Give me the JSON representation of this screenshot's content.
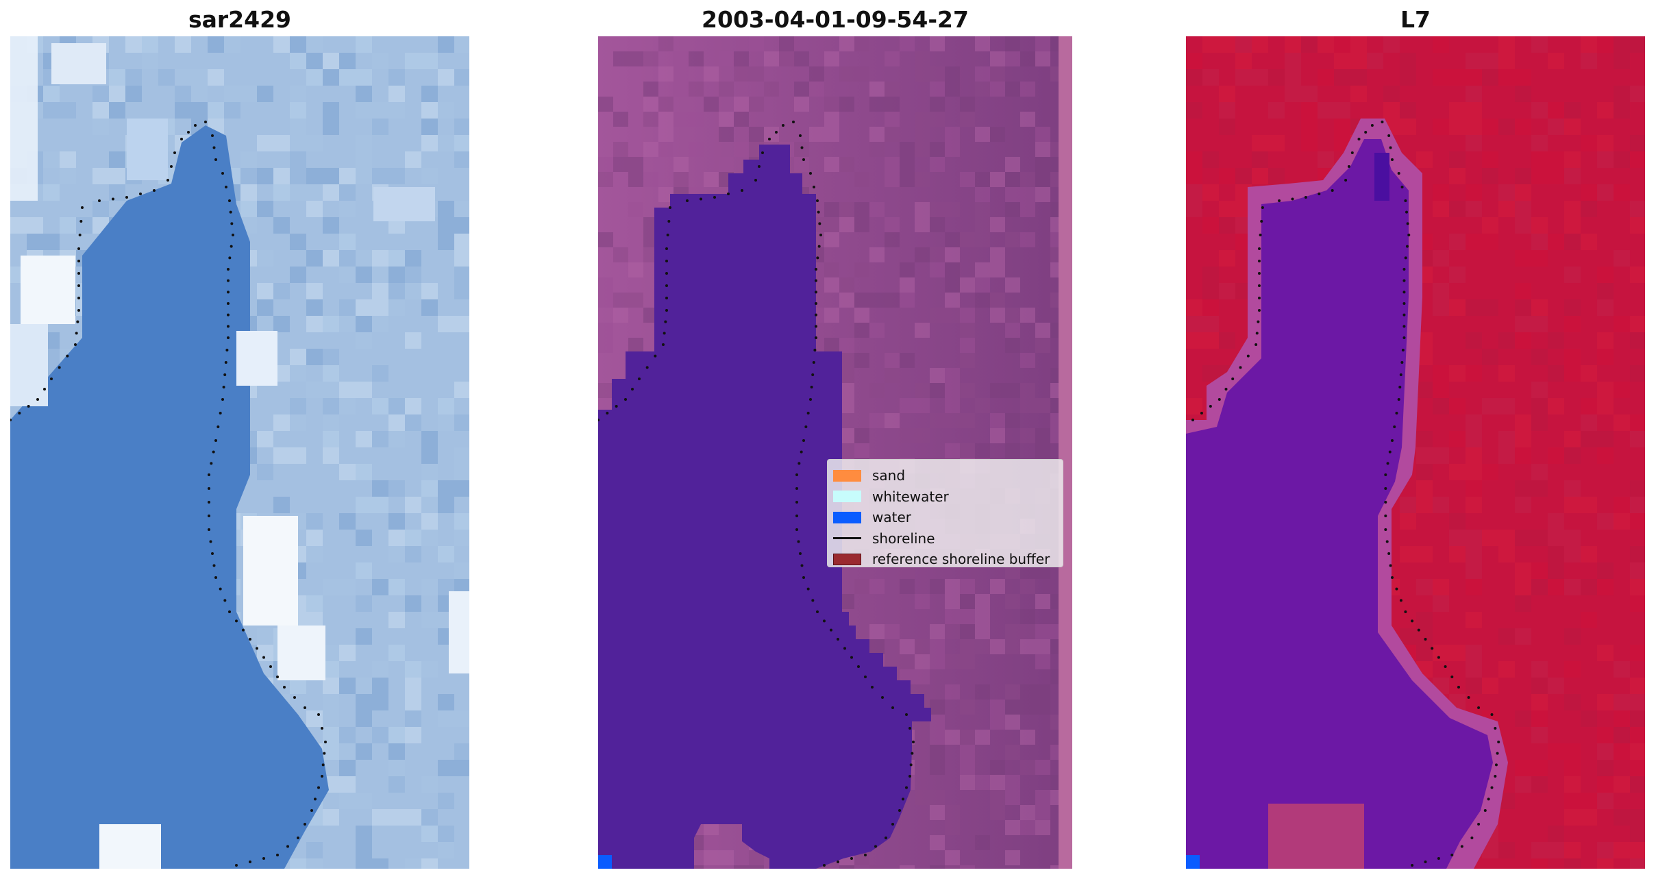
{
  "panels": [
    {
      "id": "rgb",
      "title": "sar2429"
    },
    {
      "id": "classified",
      "title": "2003-04-01-09-54-27"
    },
    {
      "id": "index",
      "title": "L7"
    }
  ],
  "legend": {
    "items": [
      {
        "label": "sand",
        "kind": "patch",
        "color": "#ff8c3f"
      },
      {
        "label": "whitewater",
        "kind": "patch",
        "color": "#c7fcfc"
      },
      {
        "label": "water",
        "kind": "patch",
        "color": "#0a5cff"
      },
      {
        "label": "shoreline",
        "kind": "line",
        "color": "#111111"
      },
      {
        "label": "reference shoreline buffer",
        "kind": "patch",
        "color": "#9a2a30"
      }
    ]
  },
  "colors": {
    "water_class": "#51229a",
    "land_left": "#a3569a",
    "land_right": "#8a4a86",
    "index_land": "#c8133f",
    "index_water": "#6b17a6",
    "rgb_water": "#4d80c6",
    "rgb_land": "#9dbde0"
  }
}
